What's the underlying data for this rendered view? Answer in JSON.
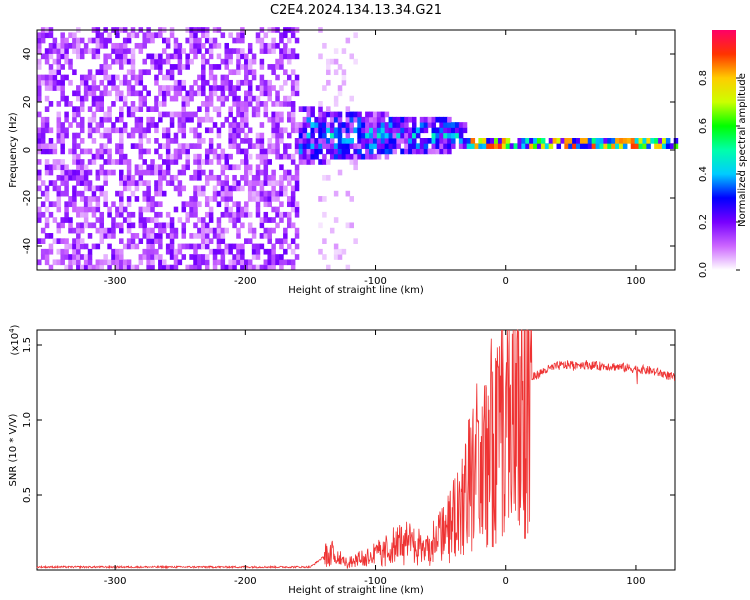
{
  "title": "C2E4.2024.134.13.34.G21",
  "chart_data": [
    {
      "type": "heatmap",
      "xlabel": "Height of straight line (km)",
      "ylabel": "Frequency (Hz)",
      "xlim": [
        -360,
        130
      ],
      "ylim": [
        -50,
        50
      ],
      "x_ticks": [
        -300,
        -200,
        -100,
        0,
        100
      ],
      "y_ticks": [
        -40,
        -20,
        0,
        20,
        40
      ],
      "colorbar": {
        "label": "Normalized spectral amplitude",
        "range": [
          0,
          1
        ],
        "ticks": [
          "0.0",
          "0.2",
          "0.4",
          "0.6",
          "0.8"
        ],
        "colormap": [
          "#ffffff",
          "#cc66ff",
          "#7700ff",
          "#0000ff",
          "#00ccff",
          "#00ffaa",
          "#00ff00",
          "#ccff00",
          "#ffcc00",
          "#ff3300",
          "#ff0066"
        ]
      },
      "regions": [
        {
          "x_range": [
            -360,
            -160
          ],
          "freq_range": [
            -50,
            50
          ],
          "amplitude": 0.15
        },
        {
          "x_range": [
            -145,
            -115
          ],
          "freq_range": [
            -50,
            50
          ],
          "amplitude": 0.05
        },
        {
          "x_range": [
            -160,
            -30
          ],
          "freq_center": 5,
          "freq_spread": 12,
          "amplitude": 0.35
        },
        {
          "x_range": [
            -30,
            130
          ],
          "freq_center": 1.5,
          "freq_spread": 3,
          "amplitude": 0.75
        }
      ]
    },
    {
      "type": "line",
      "xlabel": "Height of straight line (km)",
      "ylabel": "SNR (10 * V/V)",
      "yscale_label": "(x10",
      "yscale_exp": "4",
      "xlim": [
        -360,
        130
      ],
      "ylim": [
        0,
        1.6
      ],
      "x_ticks": [
        -300,
        -200,
        -100,
        0,
        100
      ],
      "y_ticks": [
        "0.5",
        "1.0",
        "1.5"
      ],
      "y_tick_values": [
        0.5,
        1.0,
        1.5
      ],
      "color": "#ee3333",
      "series": [
        {
          "x": [
            -360,
            -300,
            -200,
            -150,
            -135,
            -130,
            -120,
            -100,
            -80,
            -60,
            -50,
            -40,
            -30,
            -20,
            -10,
            0,
            10,
            20,
            30,
            40,
            50,
            60,
            70,
            80,
            90,
            100,
            110,
            120,
            130
          ],
          "y": [
            0.02,
            0.02,
            0.02,
            0.02,
            0.12,
            0.08,
            0.05,
            0.1,
            0.18,
            0.15,
            0.22,
            0.35,
            0.55,
            0.75,
            0.85,
            1.0,
            1.1,
            1.28,
            1.33,
            1.36,
            1.37,
            1.37,
            1.36,
            1.36,
            1.35,
            1.34,
            1.33,
            1.31,
            1.28
          ]
        }
      ]
    }
  ]
}
